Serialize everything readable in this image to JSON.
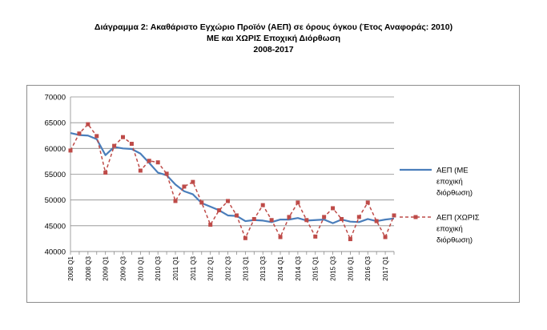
{
  "title": {
    "line1": "Διάγραμμα 2: Ακαθάριστο Εγχώριο Προϊόν (ΑΕΠ) σε όρους όγκου (Έτος Αναφοράς: 2010)",
    "line2": "ΜΕ και ΧΩΡΙΣ Εποχική Διόρθωση",
    "line3": "2008-2017"
  },
  "chart_data": {
    "type": "line",
    "title": "Διάγραμμα 2: Ακαθάριστο Εγχώριο Προϊόν (ΑΕΠ) σε όρους όγκου (Έτος Αναφοράς: 2010) ΜΕ και ΧΩΡΙΣ Εποχική Διόρθωση 2008-2017",
    "xlabel": "",
    "ylabel": "",
    "ylim": [
      40000,
      70000
    ],
    "yticks": [
      40000,
      45000,
      50000,
      55000,
      60000,
      65000,
      70000
    ],
    "grid": true,
    "legend_position": "right",
    "categories": [
      "2008 Q1",
      "2008 Q2",
      "2008 Q3",
      "2008 Q4",
      "2009 Q1",
      "2009 Q2",
      "2009 Q3",
      "2009 Q4",
      "2010 Q1",
      "2010 Q2",
      "2010 Q3",
      "2010 Q4",
      "2011 Q1",
      "2011 Q2",
      "2011 Q3",
      "2011 Q4",
      "2012 Q1",
      "2012 Q2",
      "2012 Q3",
      "2012 Q4",
      "2013 Q1",
      "2013 Q2",
      "2013 Q3",
      "2013 Q4",
      "2014 Q1",
      "2014 Q2",
      "2014 Q3",
      "2014 Q4",
      "2015 Q1",
      "2015 Q2",
      "2015 Q3",
      "2015 Q4",
      "2016 Q1",
      "2016 Q2",
      "2016 Q3",
      "2016 Q4",
      "2017 Q1",
      "2017 Q2"
    ],
    "xtick_labels": [
      "2008 Q1",
      "2008 Q3",
      "2009 Q1",
      "2009 Q3",
      "2010 Q1",
      "2010 Q3",
      "2011 Q1",
      "2011 Q3",
      "2012 Q1",
      "2012 Q3",
      "2013 Q1",
      "2013 Q3",
      "2014 Q1",
      "2014 Q3",
      "2015 Q1",
      "2015 Q3",
      "2016 Q1",
      "2016 Q3",
      "2017 Q1"
    ],
    "series": [
      {
        "name": "ΑΕΠ (ΜΕ εποχική διόρθωση)",
        "color": "#4a7ebb",
        "style": "solid",
        "values": [
          63000,
          62600,
          62500,
          61800,
          58700,
          60300,
          60000,
          59900,
          59000,
          57200,
          55300,
          54800,
          53000,
          51700,
          51100,
          49400,
          48700,
          48000,
          47000,
          46900,
          45900,
          46100,
          46000,
          45700,
          46200,
          46200,
          46500,
          46000,
          46100,
          46200,
          45500,
          46200,
          45800,
          45700,
          46300,
          45900,
          46200,
          46400
        ]
      },
      {
        "name": "ΑΕΠ (ΧΩΡΙΣ εποχική διόρθωση)",
        "color": "#be4b48",
        "style": "dashed",
        "values": [
          59600,
          62900,
          64700,
          62400,
          55300,
          60500,
          62200,
          60900,
          55700,
          57600,
          57300,
          55100,
          49800,
          52600,
          53500,
          49500,
          45200,
          48000,
          49800,
          47000,
          42600,
          46300,
          49000,
          46100,
          42800,
          46700,
          49500,
          46100,
          42900,
          46700,
          48400,
          46300,
          42400,
          46700,
          49500,
          45900,
          42800,
          47000
        ]
      }
    ]
  }
}
